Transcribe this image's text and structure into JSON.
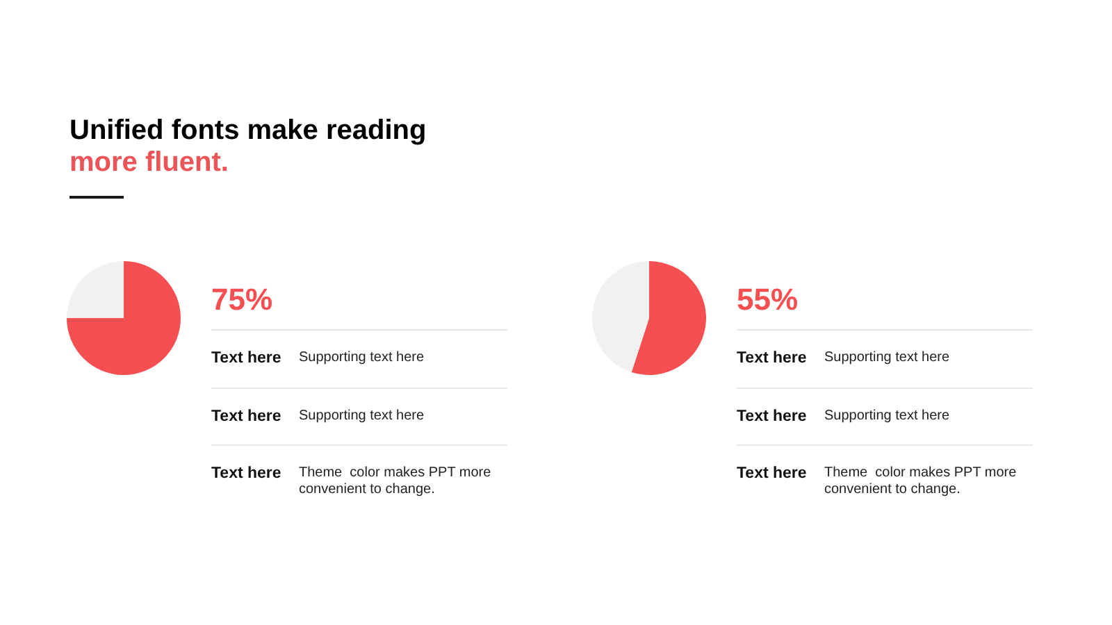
{
  "chart_data": [
    {
      "type": "other",
      "title": "Unified fonts make reading",
      "subtitle": "more fluent."
    },
    {
      "type": "pie",
      "categories": [
        null,
        null
      ],
      "values": [
        75,
        25
      ],
      "colors": [
        "#f64f52",
        "#f1f1f1"
      ],
      "value_labels": [
        "75%",
        null
      ]
    },
    {
      "type": "other",
      "annotations": [
        "Text here",
        "Supporting text here",
        "Text here",
        "Supporting text here",
        "Text here",
        "Theme  color makes PPT more convenient to change."
      ]
    },
    {
      "type": "pie",
      "categories": [
        null,
        null
      ],
      "values": [
        55,
        45
      ],
      "colors": [
        "#f64f52",
        "#f1f1f1"
      ],
      "value_labels": [
        "55%",
        null
      ]
    },
    {
      "type": "other",
      "annotations": [
        "Text here",
        "Supporting text here",
        "Text here",
        "Supporting text here",
        "Text here",
        "Theme  color makes PPT more convenient to change."
      ]
    }
  ]
}
